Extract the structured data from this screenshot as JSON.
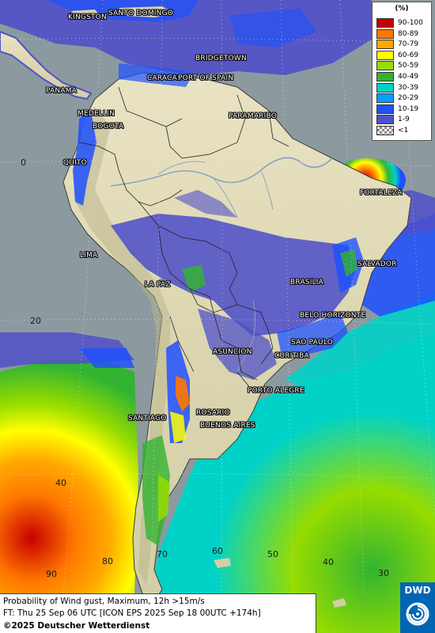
{
  "legend": {
    "unit": "(%)",
    "items": [
      {
        "label": "90-100",
        "color": "#c80000"
      },
      {
        "label": "80-89",
        "color": "#ff7800"
      },
      {
        "label": "70-79",
        "color": "#ffaa00"
      },
      {
        "label": "60-69",
        "color": "#ffff00"
      },
      {
        "label": "50-59",
        "color": "#96dc00"
      },
      {
        "label": "40-49",
        "color": "#32b432"
      },
      {
        "label": "30-39",
        "color": "#00d2c8"
      },
      {
        "label": "20-29",
        "color": "#00a0ff"
      },
      {
        "label": "10-19",
        "color": "#1e50ff"
      },
      {
        "label": "1-9",
        "color": "#5050c8"
      },
      {
        "label": "<1",
        "color": "checker"
      }
    ]
  },
  "cities": {
    "kingston": "KINGSTON",
    "santo_domingo": "SANTO DOMINGO",
    "bridgetown": "BRIDGETOWN",
    "caracas": "CARACAS",
    "port_of_spain": "PORT OF SPAIN",
    "panama": "PANAMA",
    "paramaribo": "PARAMARIBO",
    "medellin": "MEDELLIN",
    "bogota": "BOGOTA",
    "quito": "QUITO",
    "fortaleza": "FORTALEZA",
    "lima": "LIMA",
    "salvador": "SALVADOR",
    "la_paz": "LA PAZ",
    "brasilia": "BRASILIA",
    "belo_horizonte": "BELO HORIZONTE",
    "sao_paulo": "SAO PAULO",
    "curitiba": "CURITIBA",
    "asuncion": "ASUNCION",
    "porto_alegre": "PORTO ALEGRE",
    "rosario": "ROSARIO",
    "santiago": "SANTIAGO",
    "buenos_aires": "BUENOS AIRES"
  },
  "coords": {
    "lat_0": "0",
    "lat_20": "20",
    "lat_40": "40",
    "lon_90": "90",
    "lon_80": "80",
    "lon_70": "70",
    "lon_60": "60",
    "lon_50": "50",
    "lon_40": "40",
    "lon_30": "30"
  },
  "footer": {
    "line1": "Probability of Wind gust, Maximum, 12h >15m/s",
    "line2": "FT: Thu 25 Sep 06 UTC [ICON EPS 2025 Sep 18 00UTC +174h]",
    "line3": "©2025 Deutscher Wetterdienst"
  },
  "logo": {
    "text": "DWD"
  }
}
